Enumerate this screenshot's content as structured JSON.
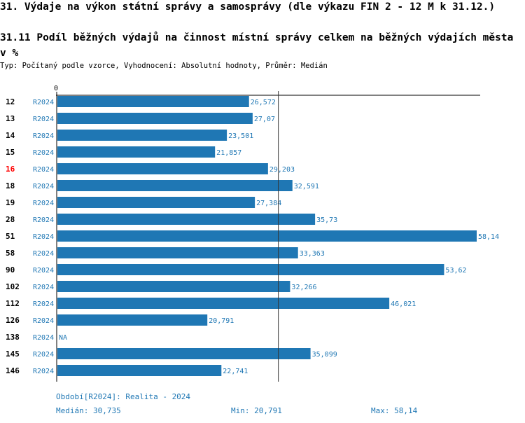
{
  "header": {
    "title": "31. Výdaje na výkon státní správy a samosprávy (dle výkazu FIN 2 - 12 M k 31.12.)",
    "subtitle": "31.11 Podíl běžných výdajů na činnost místní správy celkem na běžných výdajích města v %",
    "info": "Typ: Počítaný podle vzorce, Vyhodnocení: Absolutní hodnoty, Průměr: Medián"
  },
  "chart_data": {
    "type": "bar",
    "orientation": "horizontal",
    "axis_zero_label": "0",
    "xlim": [
      0,
      58.14
    ],
    "series_label": "R2024",
    "categories": [
      "12",
      "13",
      "14",
      "15",
      "16",
      "18",
      "19",
      "28",
      "51",
      "58",
      "90",
      "102",
      "112",
      "126",
      "138",
      "145",
      "146"
    ],
    "highlighted": "16",
    "values": [
      26.572,
      27.07,
      23.501,
      21.857,
      29.203,
      32.591,
      27.384,
      35.73,
      58.14,
      33.363,
      53.62,
      32.266,
      46.021,
      20.791,
      null,
      35.099,
      22.741
    ],
    "value_labels": [
      "26,572",
      "27,07",
      "23,501",
      "21,857",
      "29,203",
      "32,591",
      "27,384",
      "35,73",
      "58,14",
      "33,363",
      "53,62",
      "32,266",
      "46,021",
      "20,791",
      "NA",
      "35,099",
      "22,741"
    ],
    "median": 30.735
  },
  "footer": {
    "period": "Období[R2024]: Realita - 2024",
    "median": "Medián: 30,735",
    "min": "Min: 20,791",
    "max": "Max: 58,14"
  },
  "colors": {
    "bar": "#1f77b4",
    "highlight": "#ff0000",
    "label": "#1f77b4"
  }
}
